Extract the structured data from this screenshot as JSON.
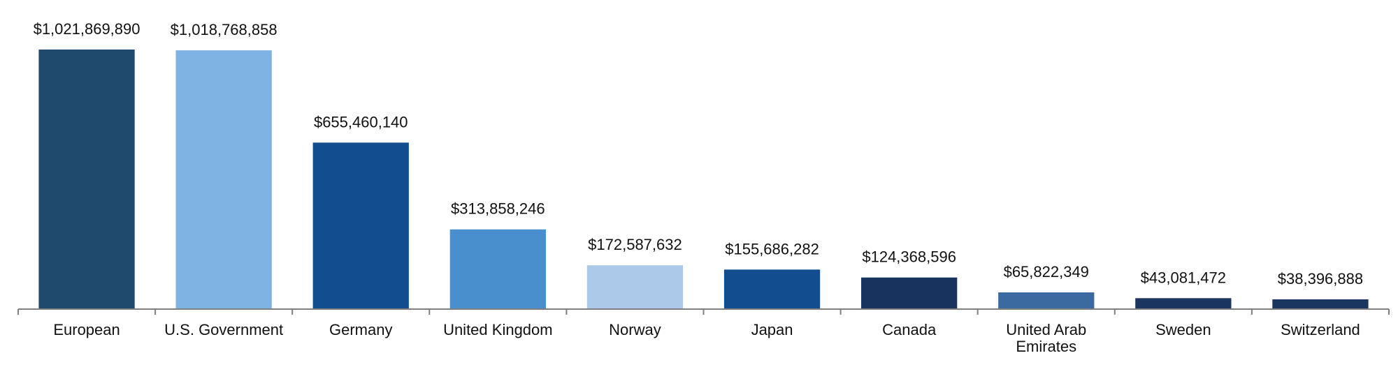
{
  "chart_data": {
    "type": "bar",
    "categories": [
      "European",
      "U.S. Government",
      "Germany",
      "United Kingdom",
      "Norway",
      "Japan",
      "Canada",
      "United Arab Emirates",
      "Sweden",
      "Switzerland"
    ],
    "values": [
      1021869890,
      1018768858,
      655460140,
      313858246,
      172587632,
      155686282,
      124368596,
      65822349,
      43081472,
      38396888
    ],
    "value_labels": [
      "$1,021,869,890",
      "$1,018,768,858",
      "$655,460,140",
      "$313,858,246",
      "$172,587,632",
      "$155,686,282",
      "$124,368,596",
      "$65,822,349",
      "$43,081,472",
      "$38,396,888"
    ],
    "colors": [
      "#1f4a6e",
      "#7fb3e3",
      "#114d8f",
      "#4a8fcd",
      "#adc9e9",
      "#114d8f",
      "#17335e",
      "#3a6aa0",
      "#1a3560",
      "#1a3560"
    ]
  }
}
